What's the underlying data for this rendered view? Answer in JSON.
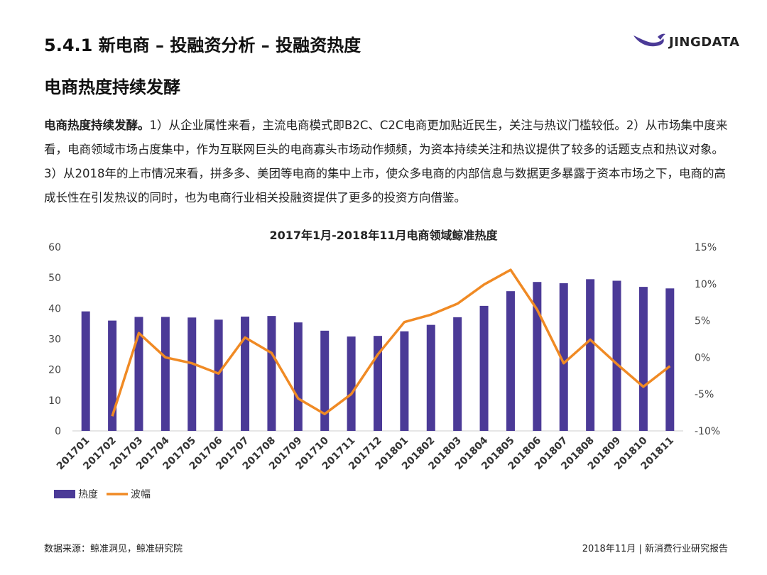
{
  "header": {
    "section_title": "5.4.1 新电商 – 投融资分析 – 投融资热度",
    "logo_text": "JINGDATA"
  },
  "content": {
    "heading": "电商热度持续发酵",
    "lead": "电商热度持续发酵。",
    "body": "1）从企业属性来看，主流电商模式即B2C、C2C电商更加贴近民生，关注与热议门槛较低。2）从市场集中度来看，电商领域市场占度集中，作为互联网巨头的电商寡头市场动作频频，为资本持续关注和热议提供了较多的话题支点和热议对象。3）从2018年的上市情况来看，拼多多、美团等电商的集中上市，使众多电商的内部信息与数据更多暴露于资本市场之下，电商的高成长性在引发热议的同时，也为电商行业相关投融资提供了更多的投资方向借鉴。"
  },
  "chart_data": {
    "type": "bar+line",
    "title": "2017年1月-2018年11月电商领域鲸准热度",
    "categories": [
      "201701",
      "201702",
      "201703",
      "201704",
      "201705",
      "201706",
      "201707",
      "201708",
      "201709",
      "201710",
      "201711",
      "201712",
      "201801",
      "201802",
      "201803",
      "201804",
      "201805",
      "201806",
      "201807",
      "201808",
      "201809",
      "201810",
      "201811"
    ],
    "series": [
      {
        "name": "热度",
        "type": "bar",
        "axis": "left",
        "color": "#4b3a97",
        "values": [
          39,
          36,
          37.2,
          37.2,
          37,
          36.3,
          37.3,
          37.5,
          35.4,
          32.7,
          30.8,
          31,
          32.5,
          34.6,
          37.1,
          40.8,
          45.6,
          48.6,
          48.2,
          49.5,
          49,
          47,
          46.5
        ]
      },
      {
        "name": "波幅",
        "type": "line",
        "axis": "right",
        "color": "#f08a24",
        "values": [
          null,
          -8,
          3.3,
          0,
          -0.8,
          -2.2,
          2.7,
          0.6,
          -5.6,
          -7.7,
          -5,
          0.4,
          4.8,
          5.8,
          7.3,
          9.9,
          11.9,
          6.5,
          -0.8,
          2.4,
          -0.9,
          -4,
          -1.2
        ]
      }
    ],
    "y_left": {
      "min": 0,
      "max": 60,
      "ticks": [
        "0",
        "10",
        "20",
        "30",
        "40",
        "50",
        "60"
      ]
    },
    "y_right": {
      "min": -10,
      "max": 15,
      "ticks": [
        "-10%",
        "-5%",
        "0%",
        "5%",
        "10%",
        "15%"
      ]
    },
    "legend_position": "bottom-left"
  },
  "footer": {
    "source": "数据来源：鲸准洞见，鲸准研究院",
    "right": "2018年11月 | 新消费行业研究报告"
  }
}
